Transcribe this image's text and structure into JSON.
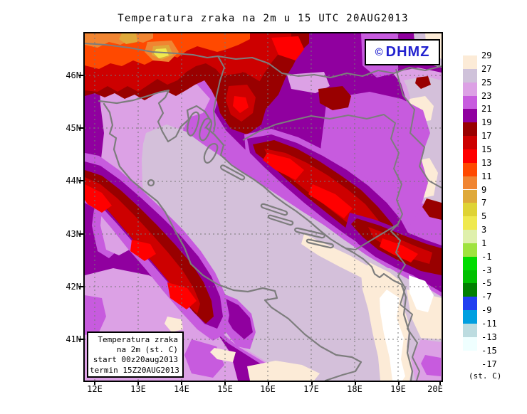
{
  "title": "Temperatura zraka na 2m u 15 UTC 20AUG2013",
  "logo": {
    "copyright": "©",
    "name": "DHMZ",
    "color": "#2222CF"
  },
  "axes": {
    "y_labels": [
      "46N",
      "45N",
      "44N",
      "43N",
      "42N",
      "41N"
    ],
    "x_labels": [
      "12E",
      "13E",
      "14E",
      "15E",
      "16E",
      "17E",
      "18E",
      "19E",
      "20E"
    ]
  },
  "colorbar": {
    "unit": "(st. C)",
    "tick_labels": [
      "29",
      "27",
      "25",
      "23",
      "21",
      "19",
      "17",
      "15",
      "13",
      "11",
      "9",
      "7",
      "5",
      "3",
      "1",
      "-1",
      "-3",
      "-5",
      "-7",
      "-9",
      "-11",
      "-13",
      "-15",
      "-17"
    ],
    "band_colors": [
      "#FCEBD7",
      "#CFC2DA",
      "#DCA1E5",
      "#C75BDE",
      "#90009F",
      "#990000",
      "#CD0000",
      "#FF0000",
      "#FF4900",
      "#F08532",
      "#DFA93A",
      "#DFD335",
      "#EFE94F",
      "#DFF0AC",
      "#9FE33F",
      "#00DC00",
      "#00C000",
      "#008000",
      "#2040F0",
      "#009FE0",
      "#BCDCE0",
      "#EFFFFF",
      "#FFFFFF"
    ]
  },
  "info_box": {
    "lines": [
      "Temperatura zraka",
      "na 2m (st. C)",
      "start 00z20aug2013",
      "termin 15Z20AUG2013"
    ]
  },
  "field_colors": {
    "base_inland": "#90009F",
    "warm_sea": "#D4C0DA",
    "warm_fringe": "#DCA1E5",
    "transition": "#C75BDE",
    "cold_ridge_dark": "#990000",
    "cold_ridge": "#CD0000",
    "cold_ridge_core": "#FF0000",
    "alps_cold": "#FF4900",
    "alps_colder": "#F08532",
    "hot_coast": "#FCEBD7",
    "hottest": "#FFFFFF",
    "coast_border": "#7D7D7D",
    "grid": "#777777"
  }
}
